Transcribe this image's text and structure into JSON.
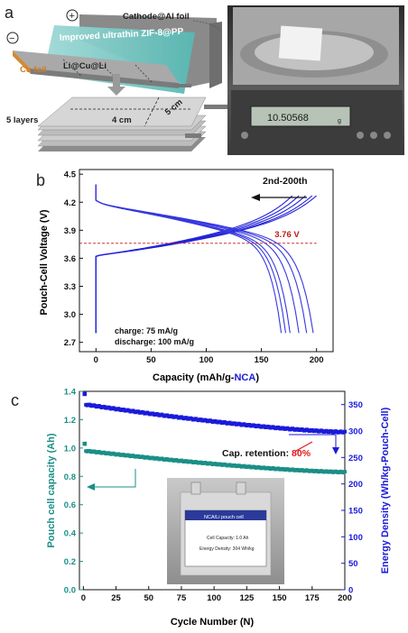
{
  "panel_a": {
    "letter": "a",
    "plus_sign": "+",
    "minus_sign": "−",
    "cathode_label": "Cathode@Al foil",
    "separator_label": "Improved ultrathin ZIF-8@PP",
    "cu_foil_label": "Cu foil",
    "anode_label": "Li@Cu@Li",
    "layers_label": "5 layers",
    "width_label": "4 cm",
    "height_label": "5 cm",
    "balance_reading": "10.50568",
    "balance_unit": "g"
  },
  "panel_b": {
    "letter": "b",
    "chart_data": {
      "type": "line",
      "xlabel_main": "Capacity (mAh/g-",
      "xlabel_accent": "NCA",
      "xlabel_close": ")",
      "ylabel": "Pouch-Cell Voltage (V)",
      "xlim": [
        -15,
        215
      ],
      "ylim": [
        2.6,
        4.55
      ],
      "xticks": [
        0,
        50,
        100,
        150,
        200
      ],
      "yticks": [
        2.7,
        3.0,
        3.3,
        3.6,
        3.9,
        4.2,
        4.5
      ],
      "reference_voltage": 3.76,
      "reference_label": "3.76 V",
      "cycle_label": "2nd-200th",
      "charge_note": "charge: 75 mA/g",
      "discharge_note": "discharge: 100 mA/g",
      "charge_end_capacities": [
        178,
        184,
        190,
        196,
        200
      ],
      "discharge_end_capacities": [
        168,
        172,
        176,
        184,
        191,
        197
      ]
    }
  },
  "panel_c": {
    "letter": "c",
    "chart_data": {
      "type": "scatter",
      "xlabel": "Cycle Number (N)",
      "ylabel_left": "Pouch cell capacity (Ah)",
      "ylabel_right": "Energy Density (Wh/kg-Pouch-Cell)",
      "xlim": [
        -3,
        200
      ],
      "ylim_left": [
        0.0,
        1.4
      ],
      "ylim_right": [
        0,
        375
      ],
      "xticks": [
        0,
        25,
        50,
        75,
        100,
        125,
        150,
        175,
        200
      ],
      "yticks_left": [
        0.0,
        0.2,
        0.4,
        0.6,
        0.8,
        1.0,
        1.2,
        1.4
      ],
      "yticks_right": [
        0,
        50,
        100,
        150,
        200,
        250,
        300,
        350
      ],
      "retention_label": "Cap. retention: ",
      "retention_value": "80%",
      "capacity_series": {
        "first_point": [
          1,
          1.03
        ],
        "start": [
          2,
          0.98
        ],
        "end": [
          200,
          0.83
        ]
      },
      "energy_series": {
        "first_point": [
          1,
          370
        ],
        "start": [
          2,
          350
        ],
        "end": [
          200,
          298
        ]
      },
      "colors": {
        "capacity": "#1b8f86",
        "energy": "#1a1adb"
      }
    },
    "cell_photo": {
      "title": "NCA/Li pouch cell",
      "capacity_text": "Cell Capacity: 1.0 Ah",
      "density_text": "Energy Density: 304 Wh/kg"
    }
  }
}
